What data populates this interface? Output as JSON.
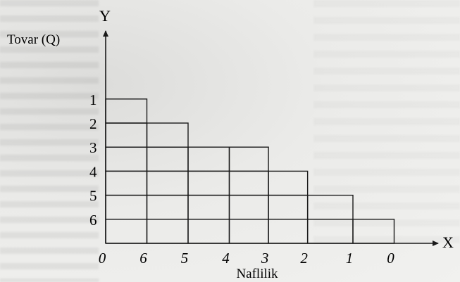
{
  "chart_data": {
    "type": "bar",
    "y_axis_letter": "Y",
    "x_axis_letter": "X",
    "ylabel": "Tovar (Q)",
    "xlabel": "Naflilik",
    "y_tick_labels": [
      "1",
      "2",
      "3",
      "4",
      "5",
      "6"
    ],
    "x_tick_labels": [
      "0",
      "6",
      "5",
      "4",
      "3",
      "2",
      "1",
      "0"
    ],
    "x_tick_positions": [
      0,
      1,
      2,
      3,
      4,
      5,
      6,
      7
    ],
    "y_tick_positions": [
      6,
      5,
      4,
      3,
      2,
      1
    ],
    "ylim": [
      0,
      7
    ],
    "xlim": [
      0,
      7.5
    ],
    "series": [
      {
        "values": [
          6,
          5,
          4,
          4,
          3,
          2,
          1
        ]
      }
    ],
    "grid": false
  }
}
